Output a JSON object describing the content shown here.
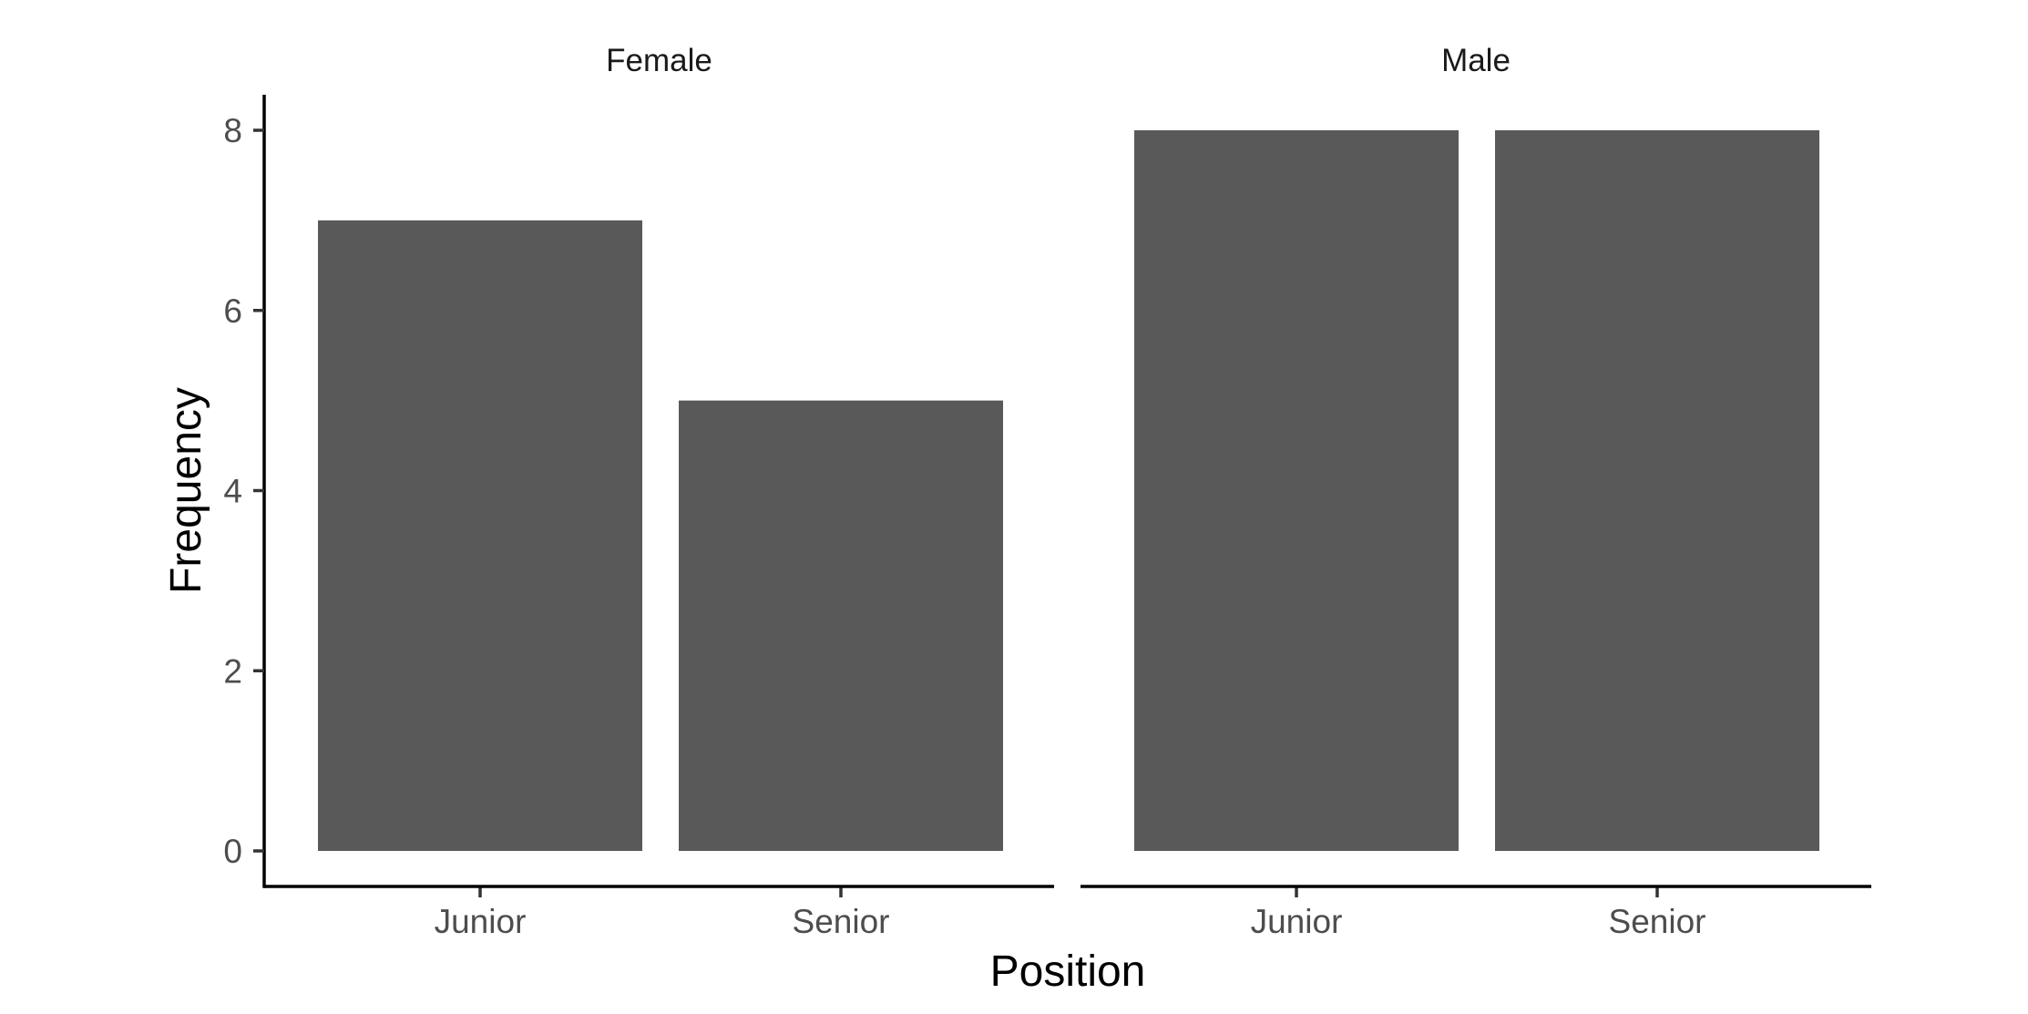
{
  "chart_data": {
    "type": "bar",
    "facet_by": "Gender",
    "xlabel": "Position",
    "ylabel": "Frequency",
    "ylim": [
      0,
      8
    ],
    "yticks": [
      0,
      2,
      4,
      6,
      8
    ],
    "categories": [
      "Junior",
      "Senior"
    ],
    "bar_color": "#595959",
    "grid": false,
    "facets": [
      {
        "label": "Female",
        "values": [
          7,
          5
        ]
      },
      {
        "label": "Male",
        "values": [
          8,
          8
        ]
      }
    ]
  }
}
